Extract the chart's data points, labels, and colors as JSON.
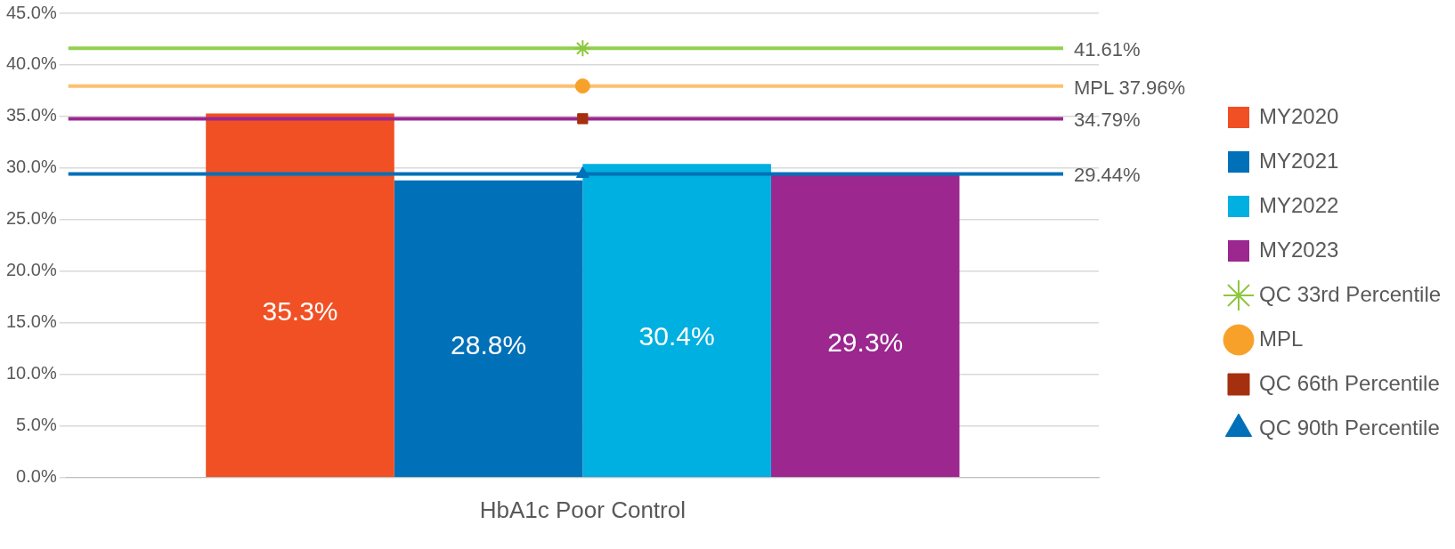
{
  "chart_data": {
    "type": "bar",
    "categories": [
      "HbA1c Poor Control"
    ],
    "series": [
      {
        "name": "MY2020",
        "color": "#f05023",
        "values": [
          35.3
        ],
        "value_labels": [
          "35.3%"
        ]
      },
      {
        "name": "MY2021",
        "color": "#0070b8",
        "values": [
          28.8
        ],
        "value_labels": [
          "28.8%"
        ]
      },
      {
        "name": "MY2022",
        "color": "#00b0e0",
        "values": [
          30.4
        ],
        "value_labels": [
          "30.4%"
        ]
      },
      {
        "name": "MY2023",
        "color": "#9b278f",
        "values": [
          29.3
        ],
        "value_labels": [
          "29.3%"
        ]
      },
      {
        "name": "QC 33rd Percentile",
        "type": "scatter",
        "marker": "cross",
        "color": "#8dc63f",
        "x": [
          "HbA1c Poor Control"
        ],
        "values": [
          41.61
        ]
      },
      {
        "name": "MPL",
        "type": "scatter",
        "marker": "circle",
        "color": "#f7a12b",
        "x": [
          "HbA1c Poor Control"
        ],
        "values": [
          37.96
        ]
      },
      {
        "name": "QC 66th Percentile",
        "type": "scatter",
        "marker": "square",
        "color": "#a5300f",
        "x": [
          "HbA1c Poor Control"
        ],
        "values": [
          34.79
        ]
      },
      {
        "name": "QC 90th Percentile",
        "type": "scatter",
        "marker": "triangle",
        "color": "#0070b8",
        "x": [
          "HbA1c Poor Control"
        ],
        "values": [
          29.44
        ]
      }
    ],
    "ref_lines": [
      {
        "axis": "y",
        "value": 41.61,
        "label": "41.61%",
        "color": "#92d050"
      },
      {
        "axis": "y",
        "value": 37.96,
        "label": "MPL 37.96%",
        "color": "#fdc070"
      },
      {
        "axis": "y",
        "value": 34.79,
        "label": "34.79%",
        "color": "#9b278f"
      },
      {
        "axis": "y",
        "value": 29.44,
        "label": "29.44%",
        "color": "#0070b8"
      }
    ],
    "ylim": [
      0,
      45
    ],
    "yticks": [
      {
        "value": 0,
        "label": "0.0%"
      },
      {
        "value": 5,
        "label": "5.0%"
      },
      {
        "value": 10,
        "label": "10.0%"
      },
      {
        "value": 15,
        "label": "15.0%"
      },
      {
        "value": 20,
        "label": "20.0%"
      },
      {
        "value": 25,
        "label": "25.0%"
      },
      {
        "value": 30,
        "label": "30.0%"
      },
      {
        "value": 35,
        "label": "35.0%"
      },
      {
        "value": 40,
        "label": "40.0%"
      },
      {
        "value": 45,
        "label": "45.0%"
      }
    ],
    "grid": "y",
    "legend": "right"
  }
}
